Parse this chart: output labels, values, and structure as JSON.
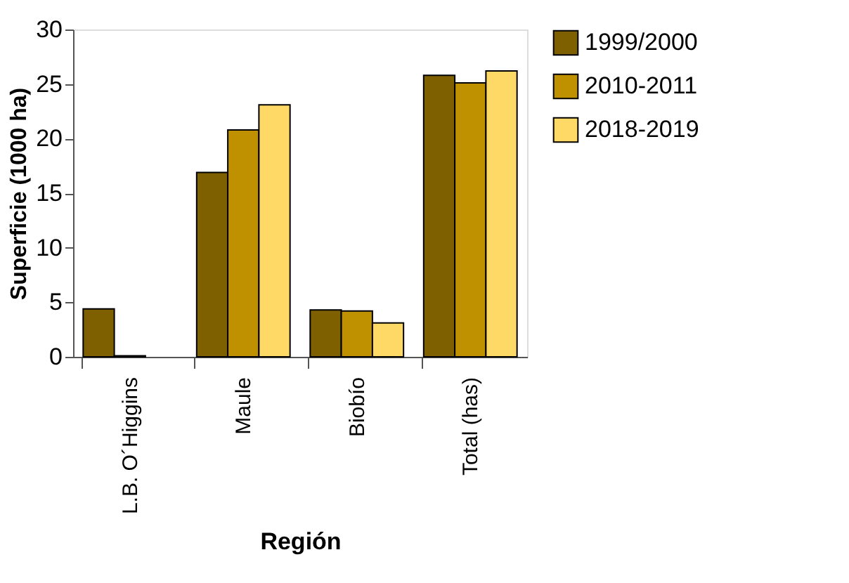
{
  "chart_data": {
    "type": "bar",
    "xlabel": "Región",
    "ylabel": "Superficie (1000 ha)",
    "categories": [
      "L.B. O´Higgins",
      "Maule",
      "Biobío",
      "Total (has)"
    ],
    "series": [
      {
        "name": "1999/2000",
        "color": "#7f6000",
        "values": [
          4.4,
          16.9,
          4.3,
          25.8
        ]
      },
      {
        "name": "2010-2011",
        "color": "#bf9000",
        "values": [
          0.1,
          20.8,
          4.2,
          25.1
        ]
      },
      {
        "name": "2018-2019",
        "color": "#ffd966",
        "values": [
          null,
          23.1,
          3.1,
          26.2
        ]
      }
    ],
    "ylim": [
      0,
      30
    ],
    "yticks": [
      0,
      5,
      10,
      15,
      20,
      25,
      30
    ],
    "grid": false,
    "legend": "right"
  }
}
